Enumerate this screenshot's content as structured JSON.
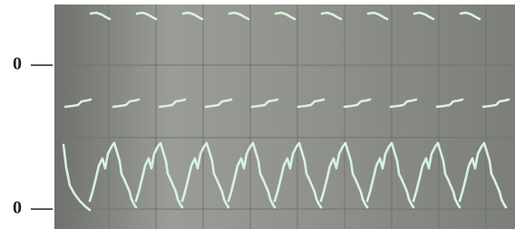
{
  "axis_labels": [
    "0",
    "0"
  ]
}
